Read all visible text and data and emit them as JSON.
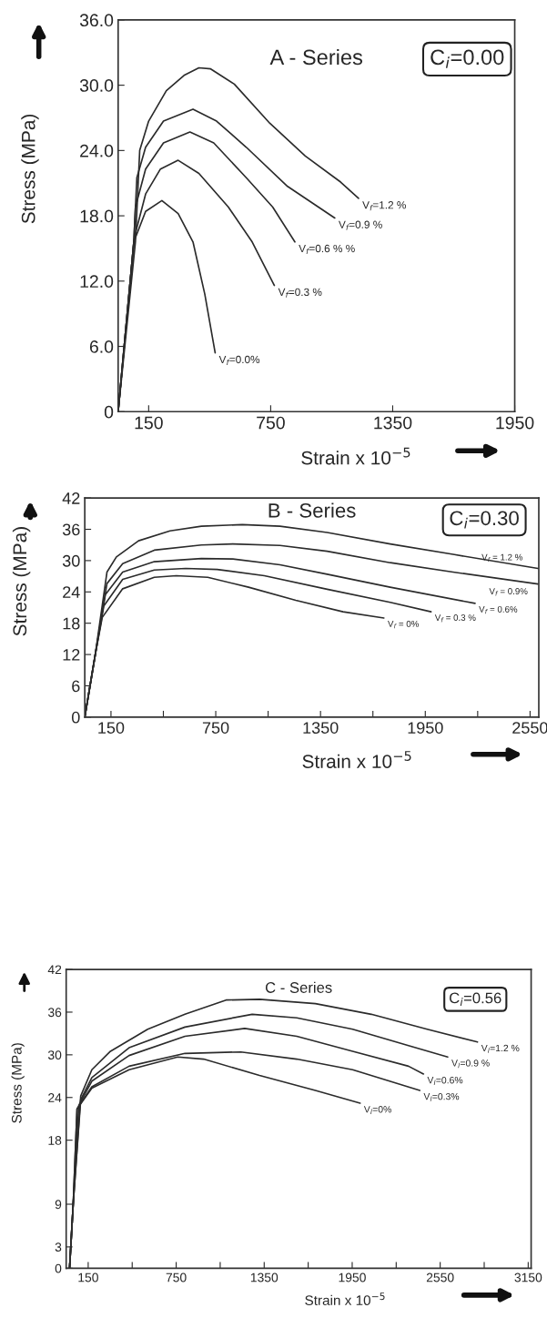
{
  "chart_data": [
    {
      "type": "line",
      "title": "A - Series",
      "xlabel": "Strain x 10$^{−5}$",
      "ylabel": "Stress (MPa)",
      "annotations": [
        "C$_{i}$=0.00"
      ],
      "xlim": [
        0,
        1950
      ],
      "ylim": [
        0,
        36
      ],
      "xticks": [
        150,
        750,
        1350,
        1950
      ],
      "yticks": [
        0,
        {
          "value": 6,
          "label": "6.0"
        },
        {
          "value": 12,
          "label": "12.0"
        },
        {
          "value": 18,
          "label": "18.0"
        },
        {
          "value": 24,
          "label": "24.0"
        },
        {
          "value": 30,
          "label": "30.0"
        },
        {
          "value": 36,
          "label": "36.0"
        }
      ],
      "grid": false,
      "legend": false,
      "marker": "none",
      "line_style": "solid",
      "series": [
        {
          "name": "V$_{f}$=1.2 %",
          "color": "#2b2b2b",
          "x": [
            0,
            85,
            106,
            150,
            237,
            324,
            397,
            455,
            571,
            746,
            920,
            1094,
            1182
          ],
          "values": [
            0,
            15.6,
            24,
            26.7,
            29.5,
            30.9,
            31.6,
            31.5,
            30.1,
            26.5,
            23.5,
            21.1,
            19.6
          ]
        },
        {
          "name": "V$_{f}$=0.9 %",
          "color": "#2b2b2b",
          "x": [
            0,
            77,
            92,
            135,
            223,
            368,
            484,
            630,
            833,
            1065
          ],
          "values": [
            0,
            15.6,
            21.5,
            24.3,
            26.7,
            27.8,
            26.7,
            24.3,
            20.7,
            17.8
          ]
        },
        {
          "name": "V$_{f}$=0.6 % %",
          "color": "#2b2b2b",
          "x": [
            0,
            77,
            85,
            135,
            223,
            353,
            470,
            630,
            760,
            869
          ],
          "values": [
            0,
            15.6,
            18.8,
            22.3,
            24.7,
            25.7,
            24.7,
            21.5,
            18.8,
            15.6
          ]
        },
        {
          "name": "V$_{f}$=0.3 %",
          "color": "#2b2b2b",
          "x": [
            0,
            77,
            85,
            135,
            208,
            295,
            397,
            542,
            659,
            768
          ],
          "values": [
            0,
            15.6,
            16.4,
            20,
            22.3,
            23.1,
            21.9,
            18.8,
            15.6,
            11.6
          ]
        },
        {
          "name": "V$_{f}$=0.0%",
          "color": "#2b2b2b",
          "x": [
            0,
            77,
            135,
            215,
            295,
            368,
            426,
            477
          ],
          "values": [
            0,
            15.6,
            18.4,
            19.4,
            18.2,
            15.6,
            10.8,
            5.4
          ]
        }
      ]
    },
    {
      "type": "line",
      "title": "B - Series",
      "xlabel": "Strain x 10$^{−5}$",
      "ylabel": "Stress (MPa)",
      "annotations": [
        "C$_{i}$=0.30"
      ],
      "xlim": [
        0,
        2600
      ],
      "ylim": [
        0,
        42
      ],
      "xticks": [
        150,
        {
          "value": 450,
          "label": null
        },
        750,
        {
          "value": 1050,
          "label": null
        },
        1350,
        {
          "value": 1650,
          "label": null
        },
        1950,
        {
          "value": 2250,
          "label": null
        },
        2550
      ],
      "yticks": [
        0,
        6,
        12,
        18,
        24,
        30,
        36,
        42
      ],
      "grid": false,
      "legend": false,
      "marker": "none",
      "line_style": "solid",
      "series": [
        {
          "name": "V$_{f}$ = 1.2 %",
          "color": "#2b2b2b",
          "x": [
            0,
            60,
            127,
            181,
            308,
            488,
            668,
            902,
            1118,
            1388,
            1749,
            2109,
            2595
          ],
          "values": [
            0,
            12,
            27.8,
            30.7,
            33.8,
            35.7,
            36.6,
            36.9,
            36.6,
            35.4,
            33.2,
            31.2,
            28.5
          ]
        },
        {
          "name": "V$_{f}$ = 0.9%",
          "color": "#2b2b2b",
          "x": [
            0,
            60,
            127,
            217,
            398,
            668,
            848,
            1118,
            1388,
            1749,
            2109,
            2595
          ],
          "values": [
            0,
            12,
            25.6,
            29.4,
            32,
            33,
            33.2,
            32.9,
            31.8,
            29.6,
            27.8,
            25.5
          ]
        },
        {
          "name": "V$_{f}$ = 0.6%",
          "color": "#2b2b2b",
          "x": [
            0,
            60,
            118,
            217,
            398,
            668,
            848,
            1118,
            1388,
            1749,
            2235
          ],
          "values": [
            0,
            12,
            23.5,
            27.8,
            29.8,
            30.4,
            30.3,
            29.2,
            27.4,
            24.9,
            21.8
          ]
        },
        {
          "name": "V$_{f}$ = 0.3 %",
          "color": "#2b2b2b",
          "x": [
            0,
            60,
            109,
            217,
            398,
            578,
            758,
            1028,
            1388,
            1749,
            1983
          ],
          "values": [
            0,
            12,
            21.3,
            26.4,
            28.2,
            28.5,
            28.3,
            27.1,
            24.5,
            22,
            20.2
          ]
        },
        {
          "name": "V$_{f}$ = 0%",
          "color": "#2b2b2b",
          "x": [
            0,
            60,
            100,
            217,
            398,
            524,
            704,
            938,
            1208,
            1479,
            1713
          ],
          "values": [
            0,
            12,
            19.1,
            24.6,
            26.8,
            27.1,
            26.8,
            24.9,
            22.4,
            20.2,
            19
          ]
        }
      ]
    },
    {
      "type": "line",
      "title": "C - Series",
      "xlabel": "Strain x 10$^{−5}$",
      "ylabel": "Stress (MPa)",
      "annotations": [
        "C$_{i}$=0.56"
      ],
      "xlim": [
        0,
        3170
      ],
      "ylim": [
        0,
        42
      ],
      "xticks": [
        150,
        {
          "value": 450,
          "label": null
        },
        750,
        {
          "value": 1050,
          "label": null
        },
        1350,
        {
          "value": 1650,
          "label": null
        },
        1950,
        {
          "value": 2250,
          "label": null
        },
        2550,
        {
          "value": 2850,
          "label": null
        },
        3150
      ],
      "yticks": [
        0,
        3,
        9,
        18,
        24,
        30,
        36,
        42
      ],
      "grid": false,
      "legend": false,
      "marker": "none",
      "line_style": "solid",
      "series": [
        {
          "name": "V$_{l}$=1.2 %",
          "color": "#2b2b2b",
          "x": [
            23,
            48,
            99,
            175,
            302,
            556,
            810,
            1090,
            1318,
            1699,
            2080,
            2461,
            2804
          ],
          "values": [
            0,
            9.1,
            24.2,
            27.9,
            30.5,
            33.6,
            35.7,
            37.7,
            37.8,
            37.2,
            35.7,
            33.6,
            31.8
          ]
        },
        {
          "name": "V$_{l}$=0.9 %",
          "color": "#2b2b2b",
          "x": [
            23,
            48,
            99,
            175,
            429,
            810,
            1268,
            1572,
            1953,
            2334,
            2601
          ],
          "values": [
            0,
            9.1,
            23.7,
            26.8,
            31,
            33.9,
            35.7,
            35.2,
            33.6,
            31.3,
            29.7
          ]
        },
        {
          "name": "V$_{l}$=0.6%",
          "color": "#2b2b2b",
          "x": [
            23,
            48,
            86,
            175,
            429,
            810,
            1217,
            1572,
            1953,
            2334,
            2436
          ],
          "values": [
            0,
            9.1,
            22.9,
            26.3,
            29.9,
            32.6,
            33.7,
            32.6,
            30.5,
            28.4,
            27.3
          ]
        },
        {
          "name": "V$_{l}$=0.3%",
          "color": "#2b2b2b",
          "x": [
            23,
            48,
            74,
            175,
            429,
            810,
            1191,
            1572,
            1953,
            2411
          ],
          "values": [
            0,
            9.1,
            22.4,
            25.5,
            28.4,
            30.2,
            30.4,
            29.4,
            27.9,
            25
          ]
        },
        {
          "name": "V$_{l}$=0%",
          "color": "#2b2b2b",
          "x": [
            23,
            48,
            74,
            175,
            429,
            760,
            937,
            1318,
            1699,
            2004
          ],
          "values": [
            0,
            9.1,
            22.4,
            25.3,
            27.9,
            29.7,
            29.4,
            27.1,
            25,
            23.2
          ]
        }
      ]
    }
  ]
}
